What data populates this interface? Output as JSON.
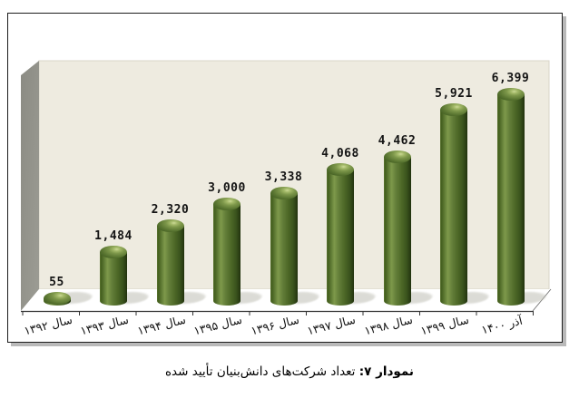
{
  "chart_data": {
    "type": "bar",
    "style": "3d-cylinder",
    "title": "",
    "xlabel": "",
    "ylabel": "",
    "categories": [
      "سال ۱۳۹۲",
      "سال ۱۳۹۳",
      "سال ۱۳۹۴",
      "سال ۱۳۹۵",
      "سال ۱۳۹۶",
      "سال ۱۳۹۷",
      "سال ۱۳۹۸",
      "سال ۱۳۹۹",
      "آذر ۱۴۰۰"
    ],
    "values": [
      55,
      1484,
      2320,
      3000,
      3338,
      4068,
      4462,
      5921,
      6399
    ],
    "values_formatted": [
      "55",
      "1,484",
      "2,320",
      "3,000",
      "3,338",
      "4,068",
      "4,462",
      "5,921",
      "6,399"
    ],
    "ylim": [
      0,
      7000
    ],
    "grid": false,
    "legend": false,
    "colors": {
      "bar_body": "#55702c",
      "bar_dark_edge": "#283b12",
      "bar_highlight": "#ccda97",
      "back_wall": "#eeebe0",
      "side_wall": "#9c9c94",
      "side_wall_dark": "#8b8b83",
      "floor": "#ffffff",
      "wall_edge": "#d8d5c8",
      "axis_line": "#333333",
      "value_label": "#141414",
      "panel_border": "#1c1c1c",
      "panel_shadow": "#b9b9b9"
    }
  },
  "caption": {
    "prefix": "نمودار ۷:",
    "text": "تعداد شرکت‌های دانش‌بنیان تأیید شده"
  }
}
